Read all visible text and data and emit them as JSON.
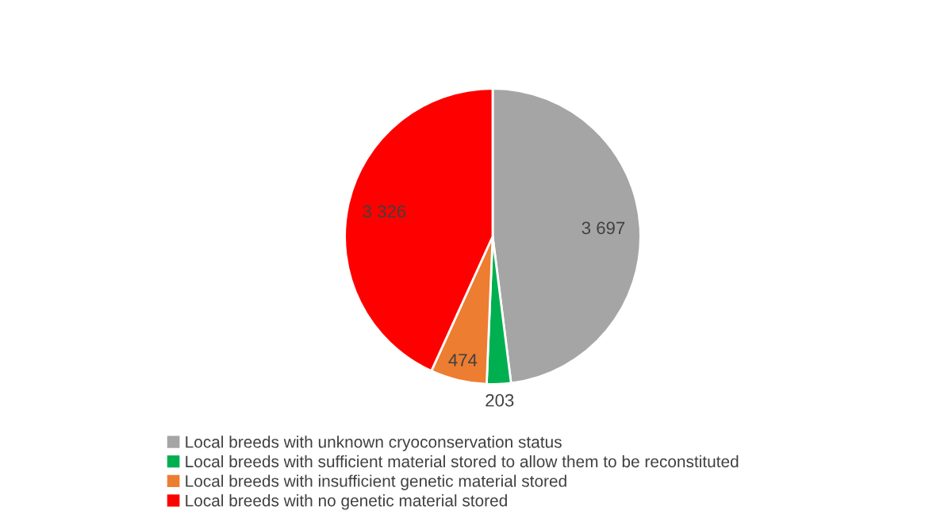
{
  "chart_data": {
    "type": "pie",
    "categories": [
      "Local breeds with unknown cryoconservation status",
      "Local breeds with sufficient material stored to allow them to be reconstituted",
      "Local breeds with insufficient genetic material stored",
      "Local breeds with no genetic material stored"
    ],
    "values": [
      3697,
      203,
      474,
      3326
    ],
    "value_labels": [
      "3 697",
      "203",
      "474",
      "3 326"
    ],
    "colors": [
      "#a5a5a5",
      "#00b050",
      "#ed7d31",
      "#ff0000"
    ],
    "legend": "bottom"
  }
}
